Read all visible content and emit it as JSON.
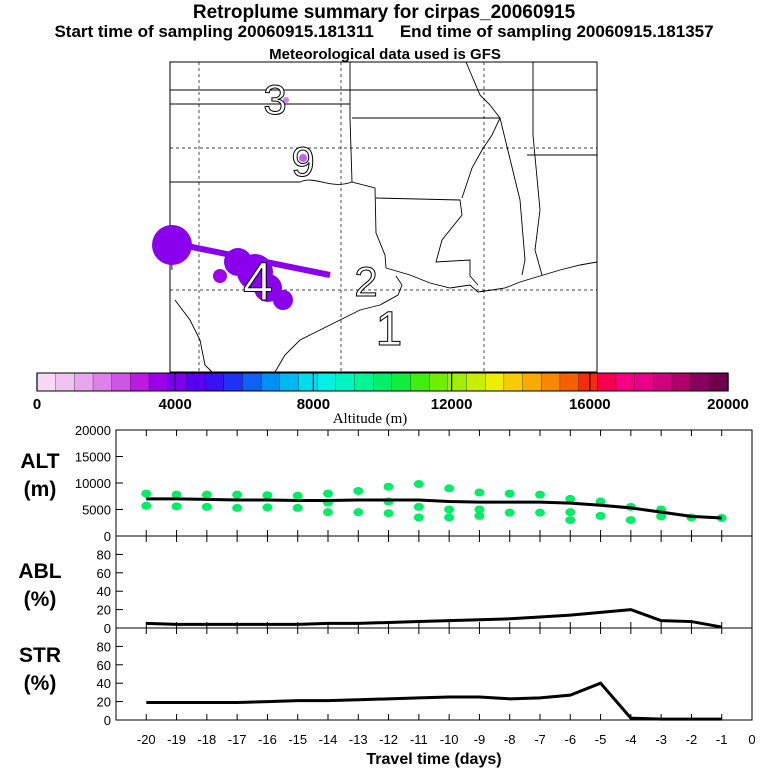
{
  "header": {
    "title": "Retroplume summary for cirpas_20060915",
    "start_label": "Start time of sampling 20060915.181311",
    "end_label": "End time of sampling 20060915.181357",
    "met_label": "Meteorological data used is GFS"
  },
  "map": {
    "day_labels": [
      {
        "text": "3",
        "day": 3
      },
      {
        "text": "9",
        "day": 9
      },
      {
        "text": "2",
        "day": 2
      },
      {
        "text": "1",
        "day": 1
      },
      {
        "text": "4",
        "day": 4
      }
    ]
  },
  "colorbar": {
    "ticks": [
      "0",
      "4000",
      "8000",
      "12000",
      "16000",
      "20000"
    ],
    "title": "Altitude (m)",
    "min": 0,
    "max": 20000,
    "colors": [
      "#f7d9f7",
      "#f0c4f2",
      "#e8a6ee",
      "#dd80ea",
      "#cf55e6",
      "#bb1ae3",
      "#9b00e8",
      "#7c00ef",
      "#5a00f2",
      "#3a10f4",
      "#2030f6",
      "#1060f4",
      "#0090f5",
      "#00b8f0",
      "#00dcee",
      "#00f0e6",
      "#00f5c0",
      "#00f595",
      "#00f06a",
      "#10ee40",
      "#40ee10",
      "#70ee00",
      "#a0ef00",
      "#c8ef00",
      "#eeee00",
      "#f7cc00",
      "#f7aa00",
      "#f78800",
      "#f76000",
      "#f72a10",
      "#f70050",
      "#f50080",
      "#e8008a",
      "#d0007c",
      "#b0006c",
      "#8a005e",
      "#6e004e"
    ]
  },
  "chart_data": [
    {
      "type": "scatter",
      "panel": "ALT",
      "ylabel_lines": [
        "ALT",
        "(m)"
      ],
      "ylim": [
        0,
        20000
      ],
      "yticks": [
        "0",
        "5000",
        "10000",
        "15000",
        "20000"
      ],
      "point_color": "#00ee66",
      "line_color": "#000000",
      "median_line": {
        "x": [
          -20,
          -19,
          -18,
          -17,
          -16,
          -15,
          -14,
          -13,
          -12,
          -11,
          -10,
          -9,
          -8,
          -7,
          -6,
          -5,
          -4,
          -3,
          -2,
          -1
        ],
        "y": [
          7000,
          7000,
          6900,
          6800,
          6800,
          6700,
          6700,
          6800,
          6800,
          6800,
          6500,
          6400,
          6400,
          6400,
          6200,
          5800,
          5300,
          4500,
          3700,
          3400
        ]
      },
      "points": [
        {
          "x": -20,
          "y": 8000
        },
        {
          "x": -20,
          "y": 5700
        },
        {
          "x": -19,
          "y": 7800
        },
        {
          "x": -19,
          "y": 5600
        },
        {
          "x": -18,
          "y": 7800
        },
        {
          "x": -18,
          "y": 5500
        },
        {
          "x": -17,
          "y": 7800
        },
        {
          "x": -17,
          "y": 5300
        },
        {
          "x": -16,
          "y": 7700
        },
        {
          "x": -16,
          "y": 5400
        },
        {
          "x": -15,
          "y": 7600
        },
        {
          "x": -15,
          "y": 5300
        },
        {
          "x": -14,
          "y": 8000
        },
        {
          "x": -14,
          "y": 6300
        },
        {
          "x": -14,
          "y": 4500
        },
        {
          "x": -13,
          "y": 8500
        },
        {
          "x": -13,
          "y": 4500
        },
        {
          "x": -12,
          "y": 9300
        },
        {
          "x": -12,
          "y": 6500
        },
        {
          "x": -12,
          "y": 4300
        },
        {
          "x": -11,
          "y": 9800
        },
        {
          "x": -11,
          "y": 5500
        },
        {
          "x": -11,
          "y": 3500
        },
        {
          "x": -10,
          "y": 9000
        },
        {
          "x": -10,
          "y": 5000
        },
        {
          "x": -10,
          "y": 3500
        },
        {
          "x": -9,
          "y": 8200
        },
        {
          "x": -9,
          "y": 5000
        },
        {
          "x": -9,
          "y": 3800
        },
        {
          "x": -8,
          "y": 8000
        },
        {
          "x": -8,
          "y": 4400
        },
        {
          "x": -7,
          "y": 7800
        },
        {
          "x": -7,
          "y": 4400
        },
        {
          "x": -6,
          "y": 7000
        },
        {
          "x": -6,
          "y": 4500
        },
        {
          "x": -6,
          "y": 3000
        },
        {
          "x": -5,
          "y": 6500
        },
        {
          "x": -5,
          "y": 3800
        },
        {
          "x": -4,
          "y": 5500
        },
        {
          "x": -4,
          "y": 3000
        },
        {
          "x": -3,
          "y": 5000
        },
        {
          "x": -3,
          "y": 3700
        },
        {
          "x": -2,
          "y": 3500
        },
        {
          "x": -1,
          "y": 3400
        }
      ]
    },
    {
      "type": "line",
      "panel": "ABL",
      "ylabel_lines": [
        "ABL",
        "(%)"
      ],
      "ylim": [
        0,
        100
      ],
      "yticks": [
        "0",
        "20",
        "40",
        "60",
        "80"
      ],
      "x": [
        -20,
        -19,
        -18,
        -17,
        -16,
        -15,
        -14,
        -13,
        -12,
        -11,
        -10,
        -9,
        -8,
        -7,
        -6,
        -5,
        -4,
        -3,
        -2,
        -1
      ],
      "y": [
        5,
        4,
        4,
        4,
        4,
        4,
        5,
        5,
        6,
        7,
        8,
        9,
        10,
        12,
        14,
        17,
        20,
        8,
        7,
        1
      ]
    },
    {
      "type": "line",
      "panel": "STR",
      "ylabel_lines": [
        "STR",
        "(%)"
      ],
      "ylim": [
        0,
        100
      ],
      "yticks": [
        "0",
        "20",
        "40",
        "60",
        "80"
      ],
      "x": [
        -20,
        -19,
        -18,
        -17,
        -16,
        -15,
        -14,
        -13,
        -12,
        -11,
        -10,
        -9,
        -8,
        -7,
        -6,
        -5,
        -4,
        -3,
        -2,
        -1
      ],
      "y": [
        19,
        19,
        19,
        19,
        20,
        21,
        21,
        22,
        23,
        24,
        25,
        25,
        23,
        24,
        27,
        40,
        2,
        1,
        1,
        1
      ],
      "xlabel": "Travel time (days)",
      "xticks": [
        "-20",
        "-19",
        "-18",
        "-17",
        "-16",
        "-15",
        "-14",
        "-13",
        "-12",
        "-11",
        "-10",
        "-9",
        "-8",
        "-7",
        "-6",
        "-5",
        "-4",
        "-3",
        "-2",
        "-1",
        "0"
      ]
    }
  ]
}
